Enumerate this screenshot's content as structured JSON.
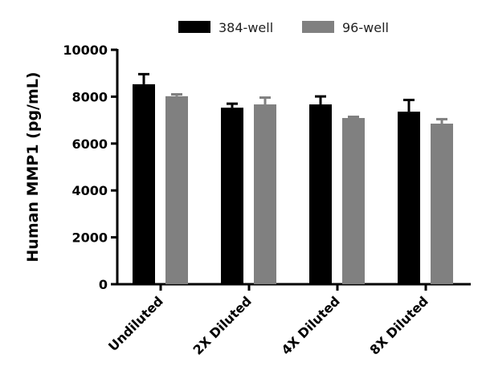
{
  "chart_data": {
    "type": "bar",
    "title": "",
    "xlabel": "",
    "ylabel": "Human MMP1 (pg/mL)",
    "ylim": [
      0,
      10000
    ],
    "yticks": [
      0,
      2000,
      4000,
      6000,
      8000,
      10000
    ],
    "categories": [
      "Undiluted",
      "2X Diluted",
      "4X Diluted",
      "8X Diluted"
    ],
    "legend_position": "top",
    "grid": false,
    "series": [
      {
        "name": "384-well",
        "color": "#000000",
        "values": [
          8530,
          7530,
          7670,
          7360
        ],
        "error": [
          430,
          170,
          340,
          500
        ]
      },
      {
        "name": "96-well",
        "color": "#808080",
        "values": [
          8020,
          7670,
          7090,
          6850
        ],
        "error": [
          80,
          290,
          50,
          190
        ]
      }
    ]
  }
}
